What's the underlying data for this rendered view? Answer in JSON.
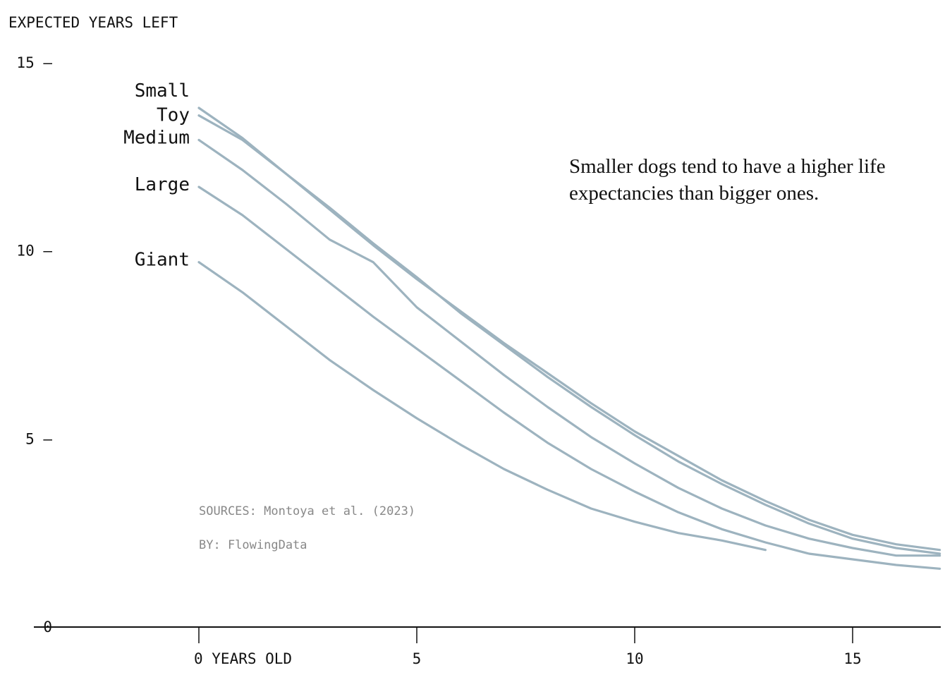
{
  "chart_data": {
    "type": "line",
    "ylabel": "EXPECTED YEARS LEFT",
    "xlabel": "",
    "ylim": [
      0,
      15
    ],
    "xlim": [
      -3.8,
      17
    ],
    "y_ticks": [
      {
        "value": 15,
        "label": "15 —"
      },
      {
        "value": 10,
        "label": "10 —"
      },
      {
        "value": 5,
        "label": "5 —"
      },
      {
        "value": 0,
        "label": "0"
      }
    ],
    "x_ticks": [
      {
        "value": 0,
        "label": "0 YEARS OLD"
      },
      {
        "value": 5,
        "label": "5"
      },
      {
        "value": 10,
        "label": "10"
      },
      {
        "value": 15,
        "label": "15"
      }
    ],
    "line_color": "#9db3bf",
    "series": [
      {
        "name": "Small",
        "x": [
          0,
          1,
          2,
          3,
          4,
          5,
          6,
          7,
          8,
          9,
          10,
          11,
          12,
          13,
          14,
          15,
          16,
          17
        ],
        "y": [
          13.8,
          13.0,
          12.05,
          11.1,
          10.15,
          9.25,
          8.4,
          7.55,
          6.75,
          5.95,
          5.2,
          4.55,
          3.9,
          3.35,
          2.85,
          2.45,
          2.2,
          2.05
        ]
      },
      {
        "name": "Toy",
        "x": [
          0,
          1,
          2,
          3,
          4,
          5,
          6,
          7,
          8,
          9,
          10,
          11,
          12,
          13,
          14,
          15,
          16,
          17
        ],
        "y": [
          13.6,
          12.95,
          12.05,
          11.15,
          10.2,
          9.3,
          8.35,
          7.5,
          6.65,
          5.85,
          5.1,
          4.4,
          3.8,
          3.25,
          2.75,
          2.35,
          2.1,
          1.95
        ]
      },
      {
        "name": "Medium",
        "x": [
          0,
          1,
          2,
          3,
          4,
          5,
          6,
          7,
          8,
          9,
          10,
          11,
          12,
          13,
          14,
          15,
          16,
          17
        ],
        "y": [
          12.95,
          12.15,
          11.25,
          10.3,
          9.7,
          8.5,
          7.6,
          6.7,
          5.85,
          5.05,
          4.35,
          3.7,
          3.15,
          2.7,
          2.35,
          2.1,
          1.9,
          1.9
        ]
      },
      {
        "name": "Large",
        "x": [
          0,
          1,
          2,
          3,
          4,
          5,
          6,
          7,
          8,
          9,
          10,
          11,
          12,
          13,
          14,
          15,
          16,
          17
        ],
        "y": [
          11.7,
          10.95,
          10.05,
          9.15,
          8.25,
          7.4,
          6.55,
          5.7,
          4.9,
          4.2,
          3.6,
          3.05,
          2.6,
          2.25,
          1.95,
          1.8,
          1.65,
          1.55
        ]
      },
      {
        "name": "Giant",
        "x": [
          0,
          1,
          2,
          3,
          4,
          5,
          6,
          7,
          8,
          9,
          10,
          11,
          12,
          13
        ],
        "y": [
          9.7,
          8.9,
          8.0,
          7.1,
          6.3,
          5.55,
          4.85,
          4.2,
          3.65,
          3.15,
          2.8,
          2.5,
          2.3,
          2.05
        ]
      }
    ],
    "annotation": "Smaller dogs tend to have a higher life expectancies than bigger ones.",
    "sources": "SOURCES: Montoya et al. (2023)",
    "byline": "BY: FlowingData"
  }
}
